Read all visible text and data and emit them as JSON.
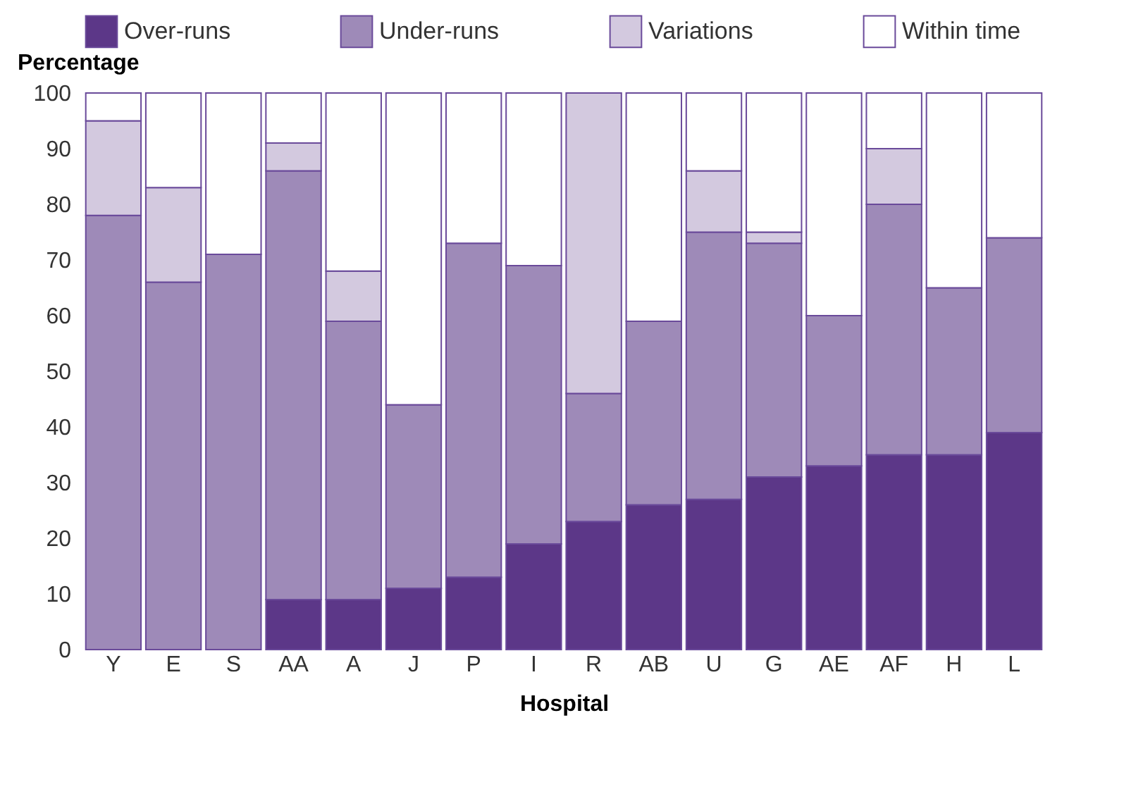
{
  "chart_data": {
    "type": "bar",
    "stacked": true,
    "xlabel": "Hospital",
    "ylabel": "Percentage",
    "categories": [
      "Y",
      "E",
      "S",
      "AA",
      "A",
      "J",
      "P",
      "I",
      "R",
      "AB",
      "U",
      "G",
      "AE",
      "AF",
      "H",
      "L"
    ],
    "series": [
      {
        "name": "Over-runs",
        "color": "#5c3788",
        "values": [
          0,
          0,
          0,
          9,
          9,
          11,
          13,
          19,
          23,
          26,
          27,
          31,
          33,
          35,
          35,
          39
        ]
      },
      {
        "name": "Under-runs",
        "color": "#9e8ab8",
        "values": [
          78,
          66,
          71,
          77,
          50,
          33,
          60,
          50,
          23,
          33,
          48,
          42,
          27,
          45,
          30,
          35
        ]
      },
      {
        "name": "Variations",
        "color": "#d3c9df",
        "values": [
          17,
          17,
          0,
          5,
          9,
          0,
          0,
          0,
          54,
          0,
          11,
          2,
          0,
          10,
          0,
          0
        ]
      },
      {
        "name": "Within time",
        "color": "#ffffff",
        "values": [
          5,
          17,
          29,
          9,
          32,
          56,
          27,
          31,
          0,
          41,
          14,
          25,
          40,
          10,
          35,
          26
        ]
      }
    ],
    "ylim": [
      0,
      100
    ],
    "yticks": [
      0,
      10,
      20,
      30,
      40,
      50,
      60,
      70,
      80,
      90,
      100
    ],
    "grid": false,
    "legend": "top"
  }
}
